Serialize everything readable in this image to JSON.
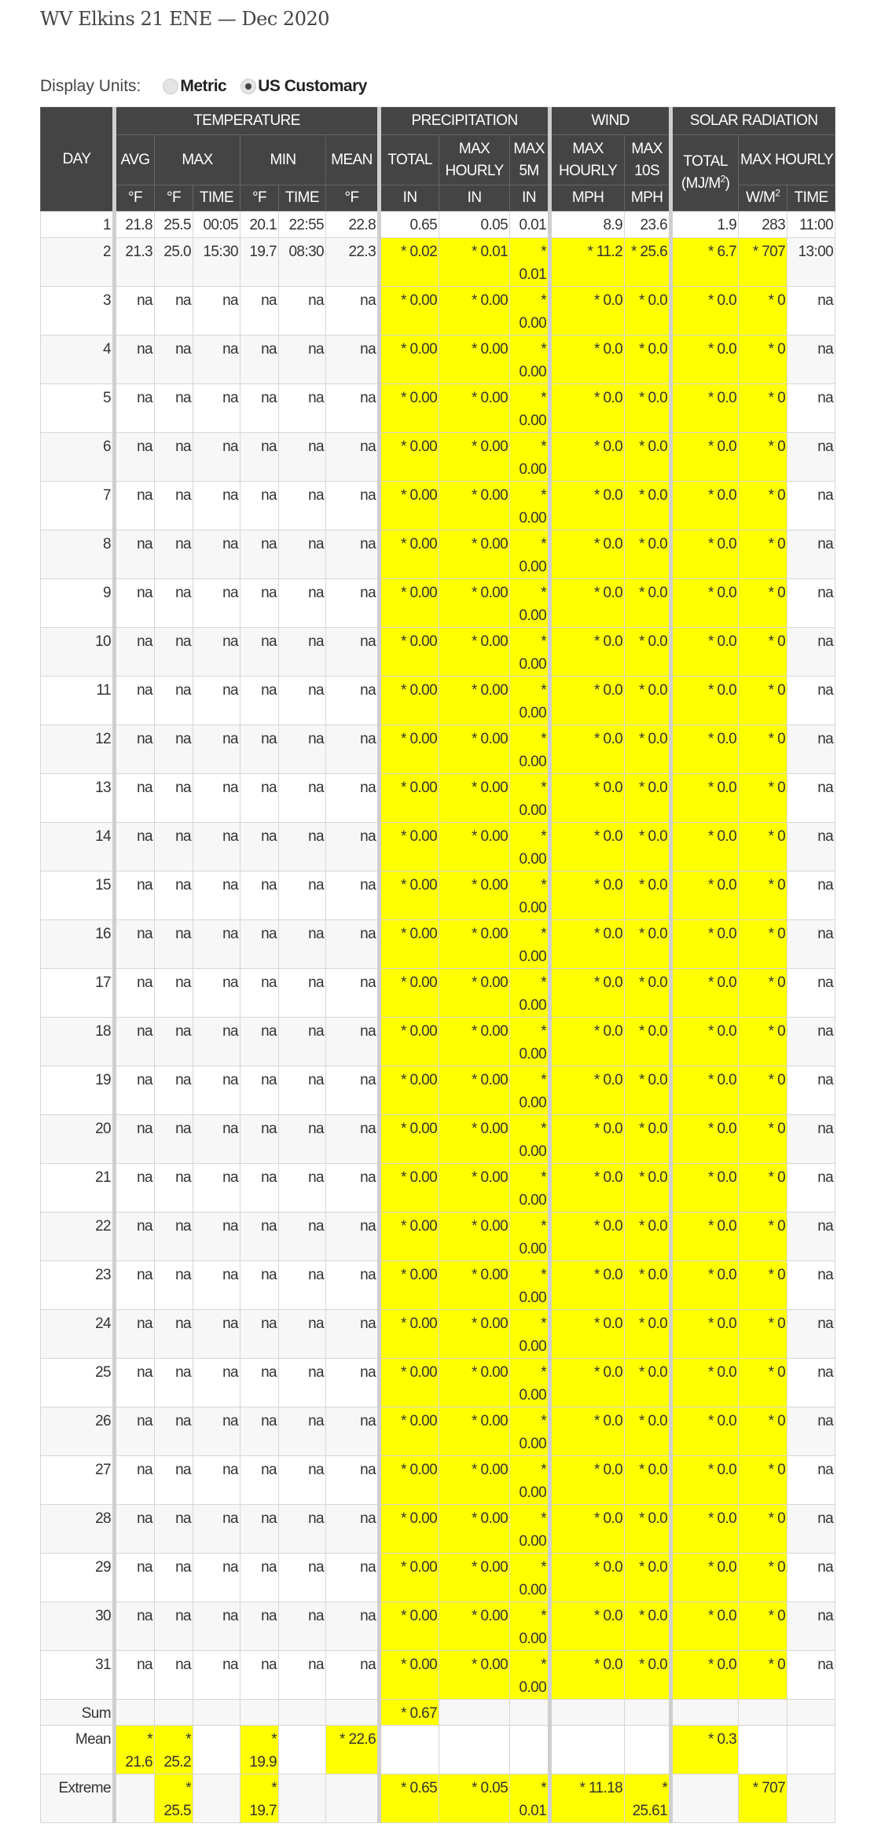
{
  "title": "WV Elkins 21 ENE — Dec 2020",
  "display_units": {
    "label": "Display Units:",
    "options": [
      {
        "label": "Metric",
        "selected": false
      },
      {
        "label": "US Customary",
        "selected": true
      }
    ]
  },
  "colors": {
    "highlight": "#ffff00",
    "header_bg": "#444444"
  },
  "header": {
    "day": "DAY",
    "groups": [
      "TEMPERATURE",
      "PRECIPITATION",
      "WIND",
      "SOLAR RADIATION"
    ],
    "columns": [
      "AVG",
      "MAX",
      "MIN",
      "MEAN",
      "TOTAL",
      "MAX HOURLY",
      "MAX 5M",
      "MAX HOURLY",
      "MAX 10S",
      "TOTAL (MJ/M2)",
      "MAX HOURLY"
    ],
    "units": [
      "°F",
      "°F",
      "TIME",
      "°F",
      "TIME",
      "°F",
      "IN",
      "IN",
      "IN",
      "MPH",
      "MPH",
      "W/M2",
      "TIME"
    ]
  },
  "rows": [
    [
      "1",
      "21.8",
      "25.5",
      "00:05",
      "20.1",
      "22:55",
      "22.8",
      "0.65",
      "0.05",
      "0.01",
      "8.9",
      "23.6",
      "1.9",
      "283",
      "11:00"
    ],
    [
      "2",
      "21.3",
      "25.0",
      "15:30",
      "19.7",
      "08:30",
      "22.3",
      "* 0.02",
      "* 0.01",
      "* 0.01",
      "* 11.2",
      "* 25.6",
      "* 6.7",
      "* 707",
      "13:00"
    ],
    [
      "3",
      "na",
      "na",
      "na",
      "na",
      "na",
      "na",
      "* 0.00",
      "* 0.00",
      "* 0.00",
      "* 0.0",
      "* 0.0",
      "* 0.0",
      "* 0",
      "na"
    ],
    [
      "4",
      "na",
      "na",
      "na",
      "na",
      "na",
      "na",
      "* 0.00",
      "* 0.00",
      "* 0.00",
      "* 0.0",
      "* 0.0",
      "* 0.0",
      "* 0",
      "na"
    ],
    [
      "5",
      "na",
      "na",
      "na",
      "na",
      "na",
      "na",
      "* 0.00",
      "* 0.00",
      "* 0.00",
      "* 0.0",
      "* 0.0",
      "* 0.0",
      "* 0",
      "na"
    ],
    [
      "6",
      "na",
      "na",
      "na",
      "na",
      "na",
      "na",
      "* 0.00",
      "* 0.00",
      "* 0.00",
      "* 0.0",
      "* 0.0",
      "* 0.0",
      "* 0",
      "na"
    ],
    [
      "7",
      "na",
      "na",
      "na",
      "na",
      "na",
      "na",
      "* 0.00",
      "* 0.00",
      "* 0.00",
      "* 0.0",
      "* 0.0",
      "* 0.0",
      "* 0",
      "na"
    ],
    [
      "8",
      "na",
      "na",
      "na",
      "na",
      "na",
      "na",
      "* 0.00",
      "* 0.00",
      "* 0.00",
      "* 0.0",
      "* 0.0",
      "* 0.0",
      "* 0",
      "na"
    ],
    [
      "9",
      "na",
      "na",
      "na",
      "na",
      "na",
      "na",
      "* 0.00",
      "* 0.00",
      "* 0.00",
      "* 0.0",
      "* 0.0",
      "* 0.0",
      "* 0",
      "na"
    ],
    [
      "10",
      "na",
      "na",
      "na",
      "na",
      "na",
      "na",
      "* 0.00",
      "* 0.00",
      "* 0.00",
      "* 0.0",
      "* 0.0",
      "* 0.0",
      "* 0",
      "na"
    ],
    [
      "11",
      "na",
      "na",
      "na",
      "na",
      "na",
      "na",
      "* 0.00",
      "* 0.00",
      "* 0.00",
      "* 0.0",
      "* 0.0",
      "* 0.0",
      "* 0",
      "na"
    ],
    [
      "12",
      "na",
      "na",
      "na",
      "na",
      "na",
      "na",
      "* 0.00",
      "* 0.00",
      "* 0.00",
      "* 0.0",
      "* 0.0",
      "* 0.0",
      "* 0",
      "na"
    ],
    [
      "13",
      "na",
      "na",
      "na",
      "na",
      "na",
      "na",
      "* 0.00",
      "* 0.00",
      "* 0.00",
      "* 0.0",
      "* 0.0",
      "* 0.0",
      "* 0",
      "na"
    ],
    [
      "14",
      "na",
      "na",
      "na",
      "na",
      "na",
      "na",
      "* 0.00",
      "* 0.00",
      "* 0.00",
      "* 0.0",
      "* 0.0",
      "* 0.0",
      "* 0",
      "na"
    ],
    [
      "15",
      "na",
      "na",
      "na",
      "na",
      "na",
      "na",
      "* 0.00",
      "* 0.00",
      "* 0.00",
      "* 0.0",
      "* 0.0",
      "* 0.0",
      "* 0",
      "na"
    ],
    [
      "16",
      "na",
      "na",
      "na",
      "na",
      "na",
      "na",
      "* 0.00",
      "* 0.00",
      "* 0.00",
      "* 0.0",
      "* 0.0",
      "* 0.0",
      "* 0",
      "na"
    ],
    [
      "17",
      "na",
      "na",
      "na",
      "na",
      "na",
      "na",
      "* 0.00",
      "* 0.00",
      "* 0.00",
      "* 0.0",
      "* 0.0",
      "* 0.0",
      "* 0",
      "na"
    ],
    [
      "18",
      "na",
      "na",
      "na",
      "na",
      "na",
      "na",
      "* 0.00",
      "* 0.00",
      "* 0.00",
      "* 0.0",
      "* 0.0",
      "* 0.0",
      "* 0",
      "na"
    ],
    [
      "19",
      "na",
      "na",
      "na",
      "na",
      "na",
      "na",
      "* 0.00",
      "* 0.00",
      "* 0.00",
      "* 0.0",
      "* 0.0",
      "* 0.0",
      "* 0",
      "na"
    ],
    [
      "20",
      "na",
      "na",
      "na",
      "na",
      "na",
      "na",
      "* 0.00",
      "* 0.00",
      "* 0.00",
      "* 0.0",
      "* 0.0",
      "* 0.0",
      "* 0",
      "na"
    ],
    [
      "21",
      "na",
      "na",
      "na",
      "na",
      "na",
      "na",
      "* 0.00",
      "* 0.00",
      "* 0.00",
      "* 0.0",
      "* 0.0",
      "* 0.0",
      "* 0",
      "na"
    ],
    [
      "22",
      "na",
      "na",
      "na",
      "na",
      "na",
      "na",
      "* 0.00",
      "* 0.00",
      "* 0.00",
      "* 0.0",
      "* 0.0",
      "* 0.0",
      "* 0",
      "na"
    ],
    [
      "23",
      "na",
      "na",
      "na",
      "na",
      "na",
      "na",
      "* 0.00",
      "* 0.00",
      "* 0.00",
      "* 0.0",
      "* 0.0",
      "* 0.0",
      "* 0",
      "na"
    ],
    [
      "24",
      "na",
      "na",
      "na",
      "na",
      "na",
      "na",
      "* 0.00",
      "* 0.00",
      "* 0.00",
      "* 0.0",
      "* 0.0",
      "* 0.0",
      "* 0",
      "na"
    ],
    [
      "25",
      "na",
      "na",
      "na",
      "na",
      "na",
      "na",
      "* 0.00",
      "* 0.00",
      "* 0.00",
      "* 0.0",
      "* 0.0",
      "* 0.0",
      "* 0",
      "na"
    ],
    [
      "26",
      "na",
      "na",
      "na",
      "na",
      "na",
      "na",
      "* 0.00",
      "* 0.00",
      "* 0.00",
      "* 0.0",
      "* 0.0",
      "* 0.0",
      "* 0",
      "na"
    ],
    [
      "27",
      "na",
      "na",
      "na",
      "na",
      "na",
      "na",
      "* 0.00",
      "* 0.00",
      "* 0.00",
      "* 0.0",
      "* 0.0",
      "* 0.0",
      "* 0",
      "na"
    ],
    [
      "28",
      "na",
      "na",
      "na",
      "na",
      "na",
      "na",
      "* 0.00",
      "* 0.00",
      "* 0.00",
      "* 0.0",
      "* 0.0",
      "* 0.0",
      "* 0",
      "na"
    ],
    [
      "29",
      "na",
      "na",
      "na",
      "na",
      "na",
      "na",
      "* 0.00",
      "* 0.00",
      "* 0.00",
      "* 0.0",
      "* 0.0",
      "* 0.0",
      "* 0",
      "na"
    ],
    [
      "30",
      "na",
      "na",
      "na",
      "na",
      "na",
      "na",
      "* 0.00",
      "* 0.00",
      "* 0.00",
      "* 0.0",
      "* 0.0",
      "* 0.0",
      "* 0",
      "na"
    ],
    [
      "31",
      "na",
      "na",
      "na",
      "na",
      "na",
      "na",
      "* 0.00",
      "* 0.00",
      "* 0.00",
      "* 0.0",
      "* 0.0",
      "* 0.0",
      "* 0",
      "na"
    ]
  ],
  "summary": [
    [
      "Sum",
      "",
      "",
      "",
      "",
      "",
      "",
      "* 0.67",
      "",
      "",
      "",
      "",
      "",
      "",
      ""
    ],
    [
      "Mean",
      "* 21.6",
      "* 25.2",
      "",
      "* 19.9",
      "",
      "* 22.6",
      "",
      "",
      "",
      "",
      "",
      "* 0.3",
      "",
      ""
    ],
    [
      "Extreme",
      "",
      "* 25.5",
      "",
      "* 19.7",
      "",
      "",
      "* 0.65",
      "* 0.05",
      "* 0.01",
      "* 11.18",
      "* 25.61",
      "",
      "* 707",
      ""
    ]
  ]
}
